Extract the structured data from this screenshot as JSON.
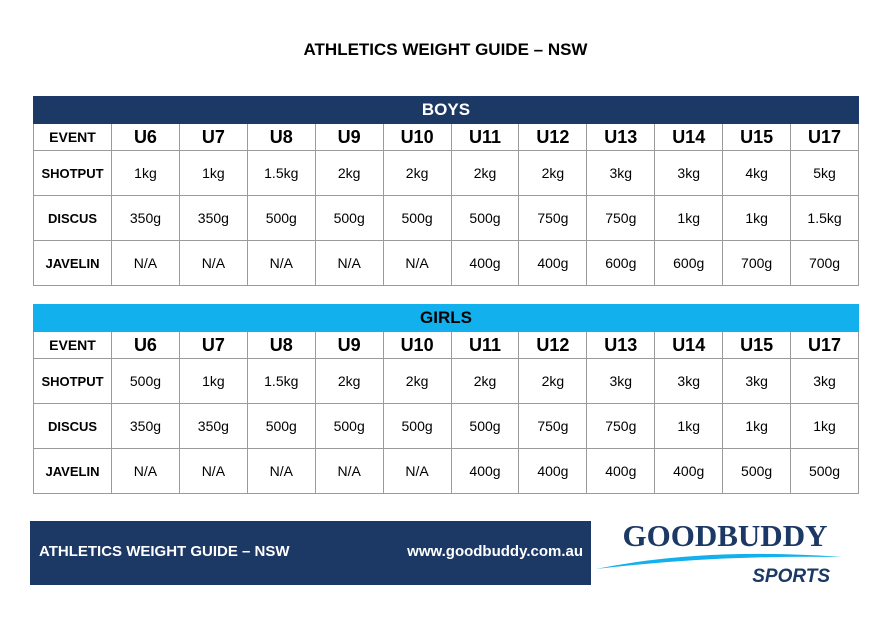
{
  "title": "ATHLETICS WEIGHT GUIDE – NSW",
  "event_label": "EVENT",
  "age_groups": [
    "U6",
    "U7",
    "U8",
    "U9",
    "U10",
    "U11",
    "U12",
    "U13",
    "U14",
    "U15",
    "U17"
  ],
  "boys": {
    "heading": "BOYS",
    "rows": [
      {
        "event": "SHOTPUT",
        "values": [
          "1kg",
          "1kg",
          "1.5kg",
          "2kg",
          "2kg",
          "2kg",
          "2kg",
          "3kg",
          "3kg",
          "4kg",
          "5kg"
        ]
      },
      {
        "event": "DISCUS",
        "values": [
          "350g",
          "350g",
          "500g",
          "500g",
          "500g",
          "500g",
          "750g",
          "750g",
          "1kg",
          "1kg",
          "1.5kg"
        ]
      },
      {
        "event": "JAVELIN",
        "values": [
          "N/A",
          "N/A",
          "N/A",
          "N/A",
          "N/A",
          "400g",
          "400g",
          "600g",
          "600g",
          "700g",
          "700g"
        ]
      }
    ]
  },
  "girls": {
    "heading": "GIRLS",
    "rows": [
      {
        "event": "SHOTPUT",
        "values": [
          "500g",
          "1kg",
          "1.5kg",
          "2kg",
          "2kg",
          "2kg",
          "2kg",
          "3kg",
          "3kg",
          "3kg",
          "3kg"
        ]
      },
      {
        "event": "DISCUS",
        "values": [
          "350g",
          "350g",
          "500g",
          "500g",
          "500g",
          "500g",
          "750g",
          "750g",
          "1kg",
          "1kg",
          "1kg"
        ]
      },
      {
        "event": "JAVELIN",
        "values": [
          "N/A",
          "N/A",
          "N/A",
          "N/A",
          "N/A",
          "400g",
          "400g",
          "400g",
          "400g",
          "500g",
          "500g"
        ]
      }
    ]
  },
  "footer": {
    "title": "ATHLETICS WEIGHT GUIDE – NSW",
    "url": "www.goodbuddy.com.au"
  },
  "logo": {
    "name": "GOODBUDDY",
    "tagline": "SPORTS"
  },
  "colors": {
    "boys_band": "#1c3865",
    "girls_band": "#12b0ec",
    "footer_bar": "#1c3865"
  }
}
